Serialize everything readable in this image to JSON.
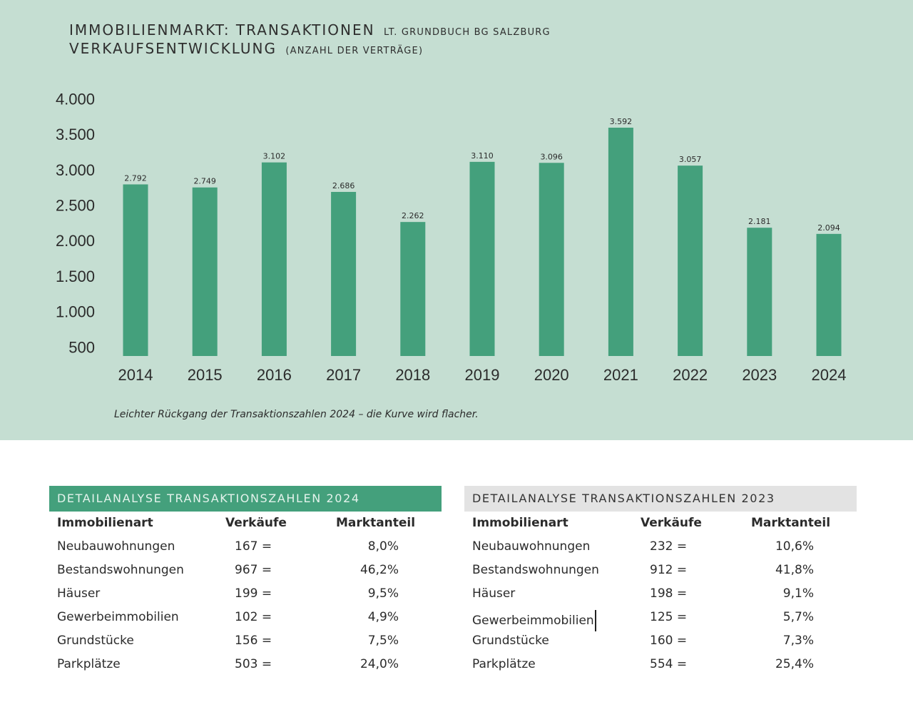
{
  "header": {
    "title_main": "IMMOBILIENMARKT: TRANSAKTIONEN",
    "title_sub": "LT. GRUNDBUCH BG SALZBURG",
    "subtitle_main": "VERKAUFSENTWICKLUNG",
    "subtitle_sub": "(ANZAHL DER VERTRÄGE)"
  },
  "colors": {
    "panel_bg": "#c5ded2",
    "bar": "#44a07c",
    "table_2024_header": "#44a07c",
    "table_2023_header": "#e3e3e3"
  },
  "chart_data": {
    "type": "bar",
    "title": "IMMOBILIENMARKT: TRANSAKTIONEN lt. Grundbuch BG Salzburg – Verkaufsentwicklung (Anzahl der Verträge)",
    "xlabel": "",
    "ylabel": "",
    "categories": [
      "2014",
      "2015",
      "2016",
      "2017",
      "2018",
      "2019",
      "2020",
      "2021",
      "2022",
      "2023",
      "2024"
    ],
    "values": [
      2792,
      2749,
      3102,
      2686,
      2262,
      3110,
      3096,
      3592,
      3057,
      2181,
      2094
    ],
    "value_labels": [
      "2.792",
      "2.749",
      "3.102",
      "2.686",
      "2.262",
      "3.110",
      "3.096",
      "3.592",
      "3.057",
      "2.181",
      "2.094"
    ],
    "yticks": [
      500,
      1000,
      1500,
      2000,
      2500,
      3000,
      3500,
      4000
    ],
    "ytick_labels": [
      "500",
      "1.000",
      "1.500",
      "2.000",
      "2.500",
      "3.000",
      "3.500",
      "4.000"
    ],
    "ylim": [
      300,
      4000
    ],
    "grid": false,
    "legend": "none"
  },
  "caption": "Leichter Rückgang der Transaktionszahlen 2024 – die Kurve wird flacher.",
  "tables": [
    {
      "title": "DETAILANALYSE TRANSAKTIONSZAHLEN 2024",
      "columns": [
        "Immobilienart",
        "Verkäufe",
        "Marktanteil"
      ],
      "rows": [
        {
          "type": "Neubauwohnungen",
          "sales": "167 =",
          "share": "8,0%"
        },
        {
          "type": "Bestandswohnungen",
          "sales": "967 =",
          "share": "46,2%"
        },
        {
          "type": "Häuser",
          "sales": "199 =",
          "share": "9,5%"
        },
        {
          "type": "Gewerbeimmobilien",
          "sales": "102 =",
          "share": "4,9%"
        },
        {
          "type": "Grundstücke",
          "sales": "156 =",
          "share": "7,5%"
        },
        {
          "type": "Parkplätze",
          "sales": "503 =",
          "share": "24,0%"
        }
      ]
    },
    {
      "title": "DETAILANALYSE TRANSAKTIONSZAHLEN 2023",
      "columns": [
        "Immobilienart",
        "Verkäufe",
        "Marktanteil"
      ],
      "rows": [
        {
          "type": "Neubauwohnungen",
          "sales": "232 =",
          "share": "10,6%"
        },
        {
          "type": "Bestandswohnungen",
          "sales": "912 =",
          "share": "41,8%"
        },
        {
          "type": "Häuser",
          "sales": "198 =",
          "share": "9,1%"
        },
        {
          "type": "Gewerbeimmobilien",
          "sales": "125 =",
          "share": "5,7%"
        },
        {
          "type": "Grundstücke",
          "sales": "160 =",
          "share": "7,3%"
        },
        {
          "type": "Parkplätze",
          "sales": "554 =",
          "share": "25,4%"
        }
      ]
    }
  ]
}
